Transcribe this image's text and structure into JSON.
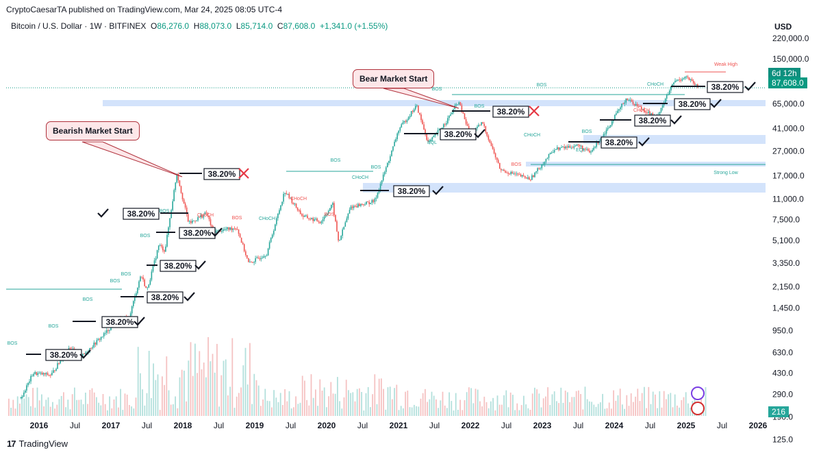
{
  "header": {
    "published": "CryptoCaesarTA published on TradingView.com, Mar 24, 2025 08:05 UTC-4",
    "symbol": "Bitcoin / U.S. Dollar · 1W · BITFINEX",
    "o_label": "O",
    "o": "86,276.0",
    "h_label": "H",
    "h": "88,073.0",
    "l_label": "L",
    "l": "85,714.0",
    "c_label": "C",
    "c": "87,608.0",
    "change": "+1,341.0 (+1.55%)",
    "currency": "USD"
  },
  "footer": {
    "brand": "TradingView",
    "logo": "17"
  },
  "price_pills": {
    "countdown": "6d 12h",
    "last_price": "87,608.0",
    "volume": "216"
  },
  "callouts": {
    "bearish": "Bearish Market Start",
    "bear": "Bear Market Start"
  },
  "colors": {
    "up": "#26a69a",
    "down": "#ef5350",
    "zone": "#d3e3fb",
    "accent": "#089981",
    "callout_bg": "#fde7e9",
    "callout_border": "#b0303b"
  },
  "chart_data": {
    "type": "candlestick",
    "scale": "log",
    "ylim": [
      140,
      300000
    ],
    "y_ticks": [
      "220,000.0",
      "150,000.0",
      "65,000.0",
      "41,000.0",
      "27,000.0",
      "17,000.0",
      "11,000.0",
      "7,500.0",
      "5,100.0",
      "3,350.0",
      "2,150.0",
      "1,450.0",
      "950.0",
      "630.0",
      "430.0",
      "290.0",
      "190.0",
      "125.0"
    ],
    "x_ticks": [
      "2016",
      "Jul",
      "2017",
      "Jul",
      "2018",
      "Jul",
      "2019",
      "Jul",
      "2020",
      "Jul",
      "2021",
      "Jul",
      "2022",
      "Jul",
      "2023",
      "Jul",
      "2024",
      "Jul",
      "2025",
      "Jul",
      "2026"
    ],
    "price_path": [
      [
        "2015-10",
        270
      ],
      [
        "2015-12",
        430
      ],
      [
        "2016-03",
        415
      ],
      [
        "2016-06",
        700
      ],
      [
        "2016-08",
        580
      ],
      [
        "2016-12",
        900
      ],
      [
        "2017-02",
        1150
      ],
      [
        "2017-04",
        1200
      ],
      [
        "2017-06",
        2700
      ],
      [
        "2017-07",
        2000
      ],
      [
        "2017-09",
        4700
      ],
      [
        "2017-10",
        4200
      ],
      [
        "2017-12",
        18000
      ],
      [
        "2018-01",
        11000
      ],
      [
        "2018-02",
        7000
      ],
      [
        "2018-05",
        8500
      ],
      [
        "2018-06",
        6000
      ],
      [
        "2018-10",
        6500
      ],
      [
        "2018-12",
        3300
      ],
      [
        "2019-03",
        4000
      ],
      [
        "2019-06",
        12800
      ],
      [
        "2019-09",
        8000
      ],
      [
        "2019-12",
        7200
      ],
      [
        "2020-02",
        10000
      ],
      [
        "2020-03",
        4900
      ],
      [
        "2020-05",
        9500
      ],
      [
        "2020-09",
        10600
      ],
      [
        "2020-12",
        28000
      ],
      [
        "2021-01",
        40000
      ],
      [
        "2021-04",
        63000
      ],
      [
        "2021-06",
        31000
      ],
      [
        "2021-09",
        47000
      ],
      [
        "2021-11",
        68000
      ],
      [
        "2022-01",
        36000
      ],
      [
        "2022-03",
        46000
      ],
      [
        "2022-06",
        19000
      ],
      [
        "2022-11",
        16000
      ],
      [
        "2023-03",
        28000
      ],
      [
        "2023-07",
        30000
      ],
      [
        "2023-09",
        26000
      ],
      [
        "2023-12",
        42000
      ],
      [
        "2024-03",
        72000
      ],
      [
        "2024-08",
        50000
      ],
      [
        "2024-11",
        98000
      ],
      [
        "2025-01",
        108000
      ],
      [
        "2025-03",
        87608
      ]
    ],
    "fib_labels": [
      "38.20%",
      "38.20%",
      "38.20%",
      "38.20%",
      "38.20%",
      "38.20%",
      "38.20%",
      "38.20%",
      "38.20%",
      "38.20%",
      "38.20%",
      "38.20%",
      "38.20%",
      "38.20%",
      "38.20%"
    ],
    "annotations": [
      "BOS",
      "BOS",
      "BOS",
      "BOS",
      "BOS",
      "BOS",
      "BOS",
      "BOS",
      "BOS",
      "BOS",
      "BOS",
      "BOS",
      "BOS",
      "CHoCH",
      "CHoCH",
      "CHoCH",
      "CHoCH",
      "CHoCH",
      "CHoCH",
      "CHoCH",
      "EQL",
      "EQL",
      "Weak High",
      "Strong Low"
    ]
  }
}
